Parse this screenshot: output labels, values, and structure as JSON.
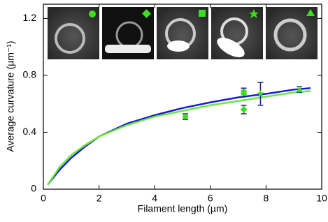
{
  "chart_data": {
    "type": "line",
    "x_label": "Filament length (µm)",
    "y_label": "Average curvature (µm⁻¹)",
    "xlim": [
      0,
      10
    ],
    "ylim": [
      0,
      1.3
    ],
    "xticks": [
      0,
      2,
      4,
      6,
      8,
      10
    ],
    "yticks": [
      0,
      0.4,
      0.8,
      1.2
    ],
    "series": [
      {
        "color": "#1a1ad6",
        "x": [
          0.15,
          0.6,
          1,
          1.5,
          2,
          3,
          4,
          5,
          6,
          7,
          8,
          9,
          9.6
        ],
        "values": [
          0.03,
          0.14,
          0.22,
          0.3,
          0.37,
          0.46,
          0.52,
          0.57,
          0.61,
          0.645,
          0.67,
          0.7,
          0.71
        ]
      },
      {
        "color": "#6ee83a",
        "x": [
          0.15,
          0.6,
          1,
          1.5,
          2,
          3,
          4,
          5,
          6,
          7,
          8,
          9,
          9.6
        ],
        "values": [
          0.03,
          0.16,
          0.24,
          0.31,
          0.37,
          0.45,
          0.51,
          0.55,
          0.59,
          0.62,
          0.65,
          0.68,
          0.69
        ]
      }
    ],
    "points": {
      "color": "#3fdc22",
      "error_color": "#1a237e",
      "x": [
        5.1,
        7.2,
        7.2,
        7.8,
        9.2
      ],
      "values": [
        0.51,
        0.56,
        0.68,
        0.67,
        0.7
      ],
      "errors": [
        0.02,
        0.03,
        0.03,
        0.08,
        0.02
      ],
      "markers": [
        "circle",
        "diamond",
        "square",
        "star",
        "triangle"
      ]
    }
  }
}
